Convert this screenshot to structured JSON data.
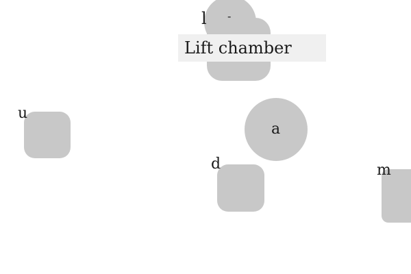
{
  "scene": {
    "background": "#ffffff",
    "shape_color": "#c8c8c8",
    "title_box_color": "#f0f0f0"
  },
  "room": {
    "title": "Lift chamber"
  },
  "markers": {
    "l": "l",
    "dash": "-",
    "u": "u",
    "a": "a",
    "d": "d",
    "m": "m"
  }
}
